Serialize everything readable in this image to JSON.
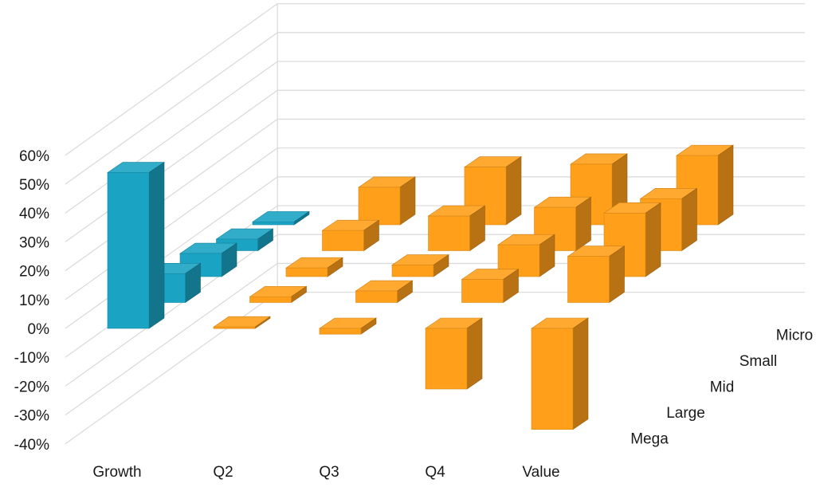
{
  "chart_data": {
    "type": "bar",
    "style": "3d-column",
    "y_ticks": [
      "60%",
      "50%",
      "40%",
      "30%",
      "20%",
      "10%",
      "0%",
      "-10%",
      "-20%",
      "-30%",
      "-40%"
    ],
    "ylim": [
      -40,
      60
    ],
    "categories": [
      "Growth",
      "Q2",
      "Q3",
      "Q4",
      "Value"
    ],
    "series": [
      {
        "name": "Mega",
        "values": [
          54,
          0.5,
          -2,
          -21,
          -35
        ]
      },
      {
        "name": "Large",
        "values": [
          10,
          2,
          4,
          8,
          16
        ]
      },
      {
        "name": "Mid",
        "values": [
          8,
          3,
          4,
          11,
          22
        ]
      },
      {
        "name": "Small",
        "values": [
          4,
          7,
          12,
          15,
          18
        ]
      },
      {
        "name": "Micro",
        "values": [
          1,
          13,
          20,
          21,
          24
        ]
      }
    ],
    "colors": {
      "growth": "#1aa3c3",
      "value": "#ff9f1a",
      "grid": "#d9d9d9"
    },
    "grid": true
  }
}
